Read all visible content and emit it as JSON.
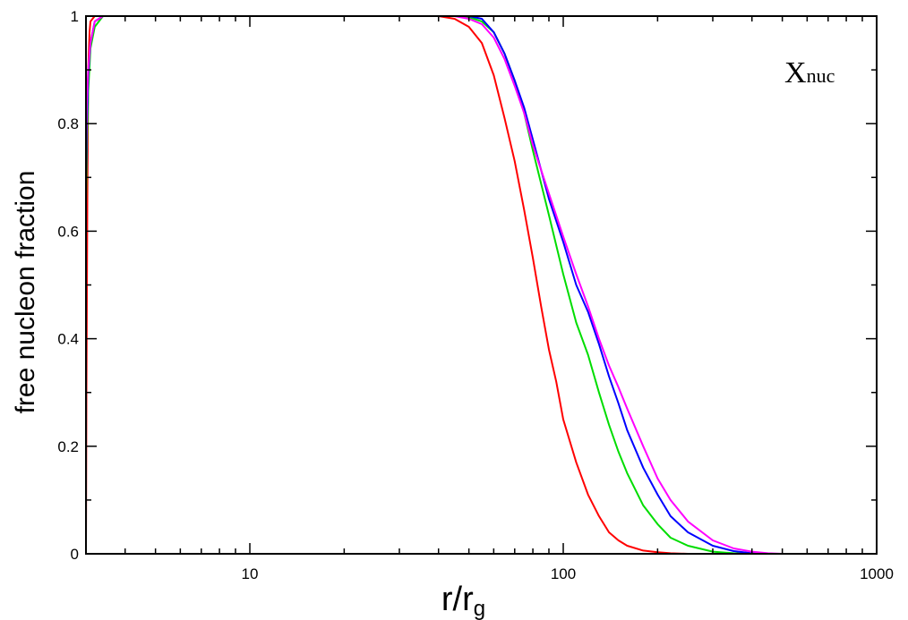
{
  "chart_data": {
    "type": "line",
    "title": "",
    "annotation": {
      "main": "X",
      "sub": "nuc"
    },
    "xlabel": {
      "main": "r/r",
      "sub": "g"
    },
    "ylabel": "free nucleon fraction",
    "xscale": "log",
    "xlim": [
      3,
      1000
    ],
    "ylim": [
      0,
      1
    ],
    "grid": false,
    "x_ticks": [
      {
        "value": 10,
        "label": "10"
      },
      {
        "value": 100,
        "label": "100"
      },
      {
        "value": 1000,
        "label": "1000"
      }
    ],
    "y_ticks": [
      {
        "value": 0,
        "label": "0"
      },
      {
        "value": 0.2,
        "label": "0.2"
      },
      {
        "value": 0.4,
        "label": "0.4"
      },
      {
        "value": 0.6,
        "label": "0.6"
      },
      {
        "value": 0.8,
        "label": "0.8"
      },
      {
        "value": 1,
        "label": "1"
      }
    ],
    "series": [
      {
        "color": "#ff0000",
        "x": [
          3.0,
          3.01,
          3.03,
          3.05,
          3.08,
          3.1,
          3.2,
          3.4,
          40,
          45,
          50,
          55,
          60,
          65,
          70,
          75,
          80,
          85,
          90,
          95,
          100,
          110,
          120,
          130,
          140,
          150,
          160,
          180,
          200,
          220,
          250
        ],
        "y": [
          0.0,
          0.3,
          0.65,
          0.9,
          0.97,
          0.99,
          1.0,
          1.0,
          1.0,
          0.995,
          0.98,
          0.95,
          0.89,
          0.81,
          0.73,
          0.64,
          0.55,
          0.46,
          0.38,
          0.32,
          0.25,
          0.17,
          0.11,
          0.07,
          0.04,
          0.025,
          0.015,
          0.006,
          0.003,
          0.001,
          0.0
        ]
      },
      {
        "color": "#00dd00",
        "x": [
          3.0,
          3.02,
          3.05,
          3.1,
          3.2,
          3.4,
          3.6,
          45,
          50,
          55,
          60,
          65,
          70,
          75,
          80,
          90,
          100,
          110,
          120,
          130,
          140,
          150,
          160,
          180,
          200,
          220,
          250,
          300,
          350,
          400
        ],
        "y": [
          0.65,
          0.75,
          0.86,
          0.94,
          0.98,
          1.0,
          1.0,
          1.0,
          0.998,
          0.99,
          0.97,
          0.93,
          0.88,
          0.82,
          0.75,
          0.63,
          0.52,
          0.43,
          0.37,
          0.3,
          0.24,
          0.19,
          0.15,
          0.09,
          0.055,
          0.03,
          0.015,
          0.004,
          0.001,
          0.0
        ]
      },
      {
        "color": "#0000ff",
        "x": [
          3.0,
          3.02,
          3.05,
          3.1,
          3.2,
          3.4,
          3.6,
          45,
          50,
          55,
          60,
          65,
          70,
          75,
          80,
          90,
          100,
          110,
          120,
          130,
          140,
          150,
          160,
          180,
          200,
          220,
          250,
          300,
          350,
          400,
          450
        ],
        "y": [
          0.7,
          0.8,
          0.89,
          0.95,
          0.99,
          1.0,
          1.0,
          1.0,
          1.0,
          0.995,
          0.97,
          0.93,
          0.88,
          0.83,
          0.77,
          0.66,
          0.58,
          0.5,
          0.45,
          0.39,
          0.33,
          0.28,
          0.23,
          0.16,
          0.11,
          0.07,
          0.04,
          0.015,
          0.005,
          0.001,
          0.0
        ]
      },
      {
        "color": "#ff00ff",
        "x": [
          3.0,
          3.02,
          3.05,
          3.1,
          3.2,
          3.4,
          3.6,
          45,
          50,
          55,
          60,
          65,
          70,
          75,
          80,
          90,
          100,
          110,
          120,
          130,
          140,
          150,
          160,
          180,
          200,
          220,
          250,
          300,
          350,
          400,
          450,
          500
        ],
        "y": [
          0.75,
          0.84,
          0.9,
          0.95,
          0.99,
          1.0,
          1.0,
          1.0,
          0.995,
          0.985,
          0.96,
          0.92,
          0.87,
          0.82,
          0.76,
          0.67,
          0.59,
          0.52,
          0.46,
          0.4,
          0.35,
          0.31,
          0.27,
          0.2,
          0.14,
          0.1,
          0.06,
          0.025,
          0.01,
          0.004,
          0.001,
          0.0
        ]
      }
    ]
  }
}
